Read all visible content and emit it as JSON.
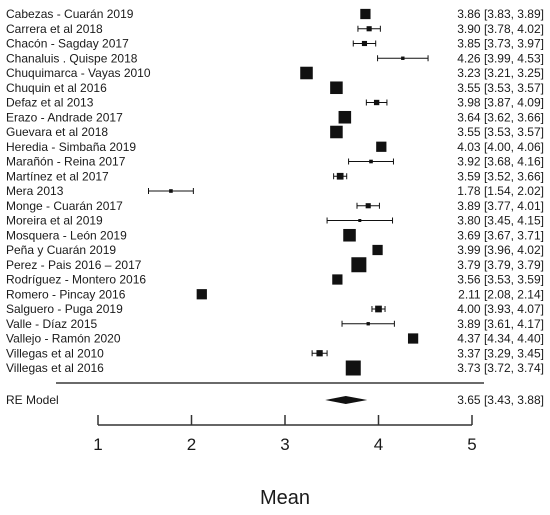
{
  "chart_data": {
    "type": "forest",
    "xlabel": "Mean",
    "xlim": [
      1,
      5
    ],
    "xticks": [
      1,
      2,
      3,
      4,
      5
    ],
    "studies": [
      {
        "label": "Cabezas - Cuarán 2019",
        "mean": 3.86,
        "lower": 3.83,
        "upper": 3.89,
        "ci_text": "3.86 [3.83, 3.89]"
      },
      {
        "label": "Carrera et al 2018",
        "mean": 3.9,
        "lower": 3.78,
        "upper": 4.02,
        "ci_text": "3.90 [3.78, 4.02]"
      },
      {
        "label": "Chacón - Sagday 2017",
        "mean": 3.85,
        "lower": 3.73,
        "upper": 3.97,
        "ci_text": "3.85 [3.73, 3.97]"
      },
      {
        "label": "Chanaluis . Quispe 2018",
        "mean": 4.26,
        "lower": 3.99,
        "upper": 4.53,
        "ci_text": "4.26 [3.99, 4.53]"
      },
      {
        "label": "Chuquimarca - Vayas 2010",
        "mean": 3.23,
        "lower": 3.21,
        "upper": 3.25,
        "ci_text": "3.23 [3.21, 3.25]"
      },
      {
        "label": "Chuquin et al 2016",
        "mean": 3.55,
        "lower": 3.53,
        "upper": 3.57,
        "ci_text": "3.55 [3.53, 3.57]"
      },
      {
        "label": "Defaz et al 2013",
        "mean": 3.98,
        "lower": 3.87,
        "upper": 4.09,
        "ci_text": "3.98 [3.87, 4.09]"
      },
      {
        "label": "Erazo - Andrade 2017",
        "mean": 3.64,
        "lower": 3.62,
        "upper": 3.66,
        "ci_text": "3.64 [3.62, 3.66]"
      },
      {
        "label": "Guevara et al 2018",
        "mean": 3.55,
        "lower": 3.53,
        "upper": 3.57,
        "ci_text": "3.55 [3.53, 3.57]"
      },
      {
        "label": "Heredia - Simbaña 2019",
        "mean": 4.03,
        "lower": 4.0,
        "upper": 4.06,
        "ci_text": "4.03 [4.00, 4.06]"
      },
      {
        "label": "Marañón - Reina 2017",
        "mean": 3.92,
        "lower": 3.68,
        "upper": 4.16,
        "ci_text": "3.92 [3.68, 4.16]"
      },
      {
        "label": "Martínez et al 2017",
        "mean": 3.59,
        "lower": 3.52,
        "upper": 3.66,
        "ci_text": "3.59 [3.52, 3.66]"
      },
      {
        "label": "Mera 2013",
        "mean": 1.78,
        "lower": 1.54,
        "upper": 2.02,
        "ci_text": "1.78 [1.54, 2.02]"
      },
      {
        "label": "Monge - Cuarán 2017",
        "mean": 3.89,
        "lower": 3.77,
        "upper": 4.01,
        "ci_text": "3.89 [3.77, 4.01]"
      },
      {
        "label": "Moreira et al 2019",
        "mean": 3.8,
        "lower": 3.45,
        "upper": 4.15,
        "ci_text": "3.80 [3.45, 4.15]"
      },
      {
        "label": "Mosquera - León 2019",
        "mean": 3.69,
        "lower": 3.67,
        "upper": 3.71,
        "ci_text": "3.69 [3.67, 3.71]"
      },
      {
        "label": "Peña y Cuarán 2019",
        "mean": 3.99,
        "lower": 3.96,
        "upper": 4.02,
        "ci_text": "3.99 [3.96, 4.02]"
      },
      {
        "label": "Perez - Pais 2016 – 2017",
        "mean": 3.79,
        "lower": 3.79,
        "upper": 3.79,
        "ci_text": "3.79 [3.79, 3.79]"
      },
      {
        "label": "Rodríguez - Montero 2016",
        "mean": 3.56,
        "lower": 3.53,
        "upper": 3.59,
        "ci_text": "3.56 [3.53, 3.59]"
      },
      {
        "label": "Romero - Pincay 2016",
        "mean": 2.11,
        "lower": 2.08,
        "upper": 2.14,
        "ci_text": "2.11 [2.08, 2.14]"
      },
      {
        "label": "Salguero - Puga 2019",
        "mean": 4.0,
        "lower": 3.93,
        "upper": 4.07,
        "ci_text": "4.00 [3.93, 4.07]"
      },
      {
        "label": "Valle - Díaz 2015",
        "mean": 3.89,
        "lower": 3.61,
        "upper": 4.17,
        "ci_text": "3.89 [3.61, 4.17]"
      },
      {
        "label": "Vallejo - Ramón 2020",
        "mean": 4.37,
        "lower": 4.34,
        "upper": 4.4,
        "ci_text": "4.37 [4.34, 4.40]"
      },
      {
        "label": "Villegas et al 2010",
        "mean": 3.37,
        "lower": 3.29,
        "upper": 3.45,
        "ci_text": "3.37 [3.29, 3.45]"
      },
      {
        "label": "Villegas et al 2016",
        "mean": 3.73,
        "lower": 3.72,
        "upper": 3.74,
        "ci_text": "3.73 [3.72, 3.74]"
      }
    ],
    "summary": {
      "label": "RE Model",
      "mean": 3.65,
      "lower": 3.43,
      "upper": 3.88,
      "ci_text": "3.65 [3.43, 3.88]"
    },
    "colors": {
      "marker": "#111111",
      "text": "#1a1a1a"
    }
  }
}
